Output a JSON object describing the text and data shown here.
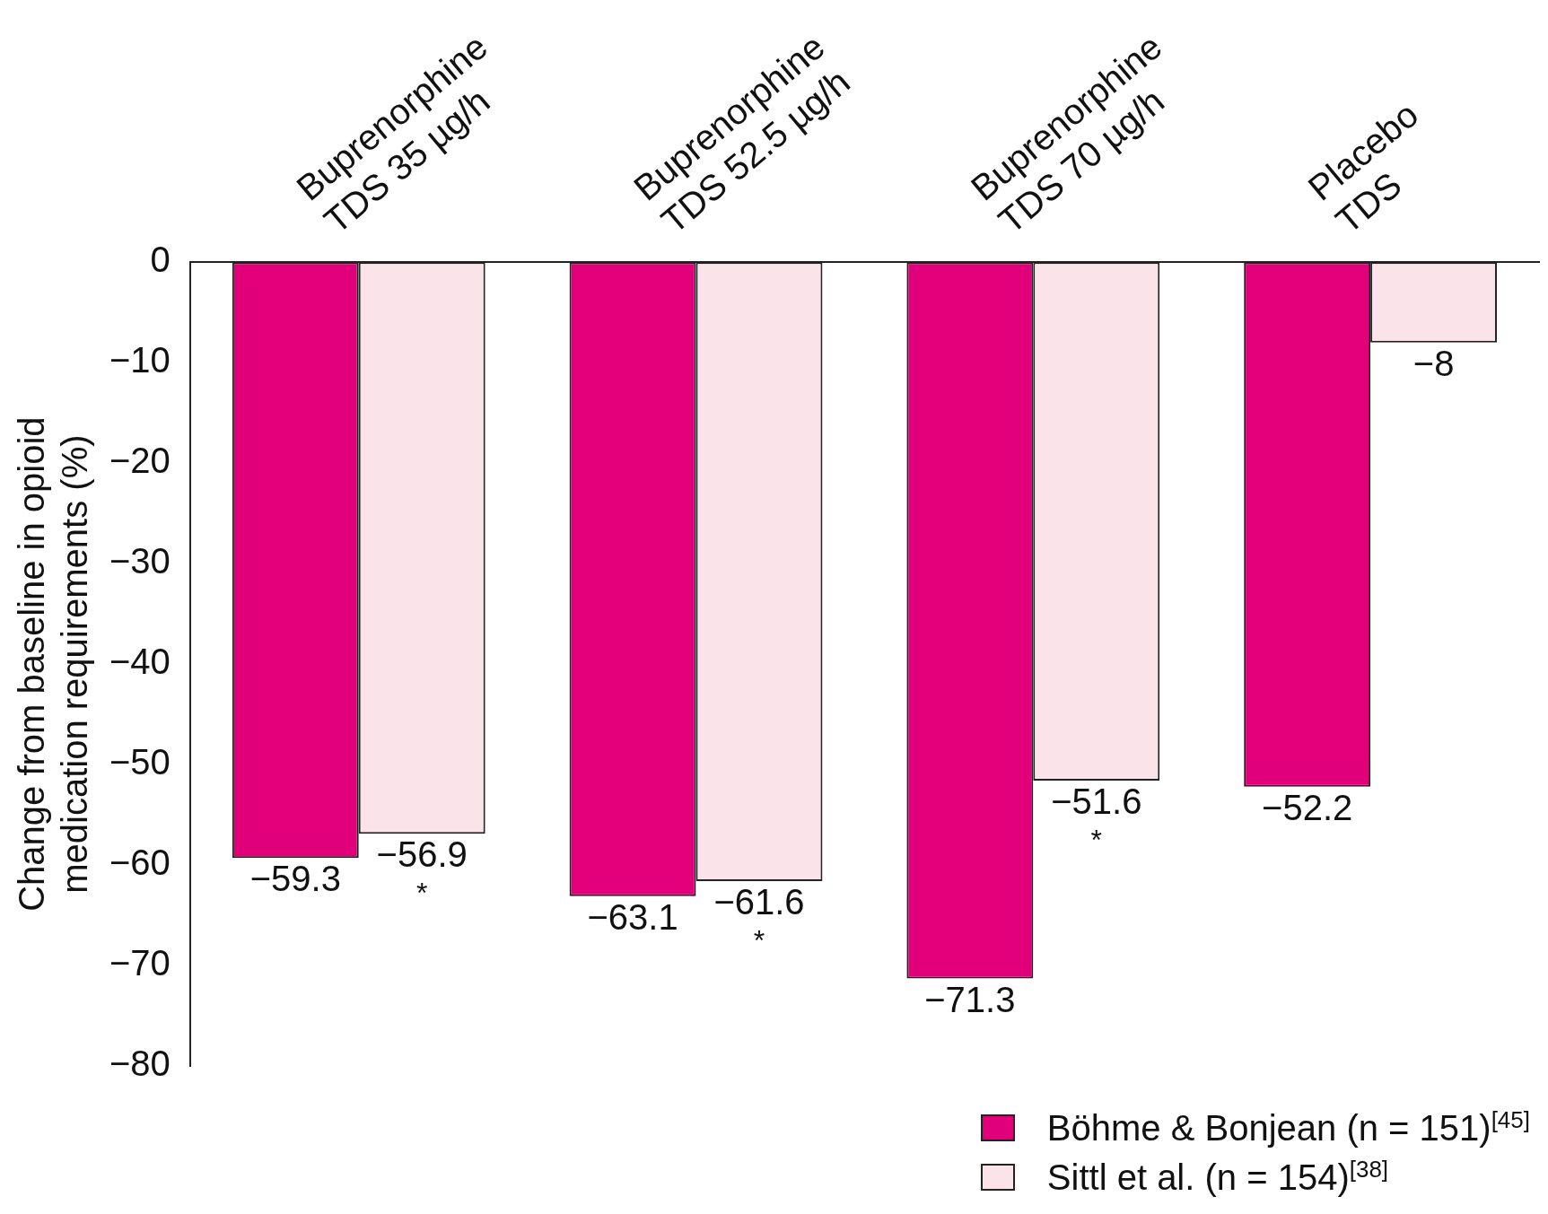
{
  "chart_data": {
    "type": "bar",
    "ylabel": "Change from baseline in opioid medication requirements (%)",
    "categories": [
      "Buprenorphine TDS 35 µg/h",
      "Buprenorphine TDS 52.5 µg/h",
      "Buprenorphine TDS 70 µg/h",
      "Placebo TDS"
    ],
    "series": [
      {
        "name": "Böhme & Bonjean (n = 151)$^{[45]}$",
        "color": "#e2007a",
        "values": [
          -59.3,
          -63.1,
          -71.3,
          -52.2
        ],
        "value_labels": [
          "−59.3",
          "−63.1",
          "−71.3",
          "−52.2"
        ]
      },
      {
        "name": "Sittl et al. (n = 154)$^{[38]}$",
        "color": "#fbe3ea",
        "values": [
          -56.9,
          -61.6,
          -51.6,
          -8
        ],
        "value_labels": [
          "−56.9",
          "−61.6",
          "−51.6",
          "−8"
        ]
      }
    ],
    "ylim": [
      -80,
      0
    ],
    "yticks": [
      {
        "value": 0,
        "label": "0"
      },
      {
        "value": -10,
        "label": "−10"
      },
      {
        "value": -20,
        "label": "−20"
      },
      {
        "value": -30,
        "label": "−30"
      },
      {
        "value": -40,
        "label": "−40"
      },
      {
        "value": -50,
        "label": "−50"
      },
      {
        "value": -60,
        "label": "−60"
      },
      {
        "value": -70,
        "label": "−70"
      },
      {
        "value": -80,
        "label": "−80"
      }
    ],
    "annotations": [
      {
        "text": "*",
        "x": "Buprenorphine TDS 35 µg/h",
        "y": -56.9
      },
      {
        "text": "*",
        "x": "Buprenorphine TDS 52.5 µg/h",
        "y": -61.6
      },
      {
        "text": "*",
        "x": "Buprenorphine TDS 70 µg/h",
        "y": -51.6
      }
    ],
    "grid": false,
    "legend": "bottom right"
  }
}
